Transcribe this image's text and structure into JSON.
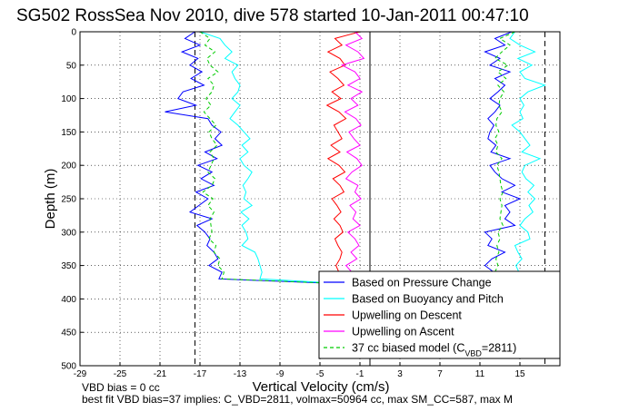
{
  "chart_data": {
    "type": "line",
    "title": "SG502 RossSea Nov 2010, dive 578 started 10-Jan-2011 00:47:10",
    "xlabel": "Vertical Velocity (cm/s)",
    "ylabel": "Depth (m)",
    "xlim": [
      -29,
      19
    ],
    "ylim": [
      500,
      0
    ],
    "y_reversed": true,
    "grid": true,
    "x_ticks": [
      -29,
      -25,
      -21,
      -17,
      -13,
      -9,
      -5,
      -1,
      3,
      7,
      11,
      15
    ],
    "x_tick_labels": [
      "-29",
      "-25",
      "-21",
      "-17",
      "-13",
      "-9",
      "-5",
      "-1",
      "3",
      "7",
      "11",
      "15"
    ],
    "y_ticks": [
      0,
      50,
      100,
      150,
      200,
      250,
      300,
      350,
      400,
      450,
      500
    ],
    "y_tick_labels": [
      "0",
      "50",
      "100",
      "150",
      "200",
      "250",
      "300",
      "350",
      "400",
      "450",
      "500"
    ],
    "reference_lines": [
      {
        "x": -17.5,
        "style": "dashed"
      },
      {
        "x": 0,
        "style": "solid"
      },
      {
        "x": 17.5,
        "style": "dashed"
      }
    ],
    "legend_position": "bottom-right",
    "series": [
      {
        "name": "Based on Pressure Change",
        "color": "#0000ff",
        "descent": {
          "depth": [
            0,
            10,
            20,
            30,
            40,
            50,
            60,
            70,
            80,
            90,
            100,
            110,
            120,
            130,
            140,
            150,
            160,
            170,
            180,
            190,
            200,
            210,
            220,
            230,
            240,
            250,
            260,
            270,
            280,
            290,
            300,
            310,
            320,
            330,
            340,
            350,
            360,
            370,
            378
          ],
          "vel": [
            -17.5,
            -18.5,
            -17.0,
            -18.8,
            -17.2,
            -18.0,
            -16.8,
            -17.9,
            -16.6,
            -18.7,
            -19.2,
            -17.4,
            -20.5,
            -16.2,
            -15.8,
            -14.9,
            -15.5,
            -14.8,
            -16.5,
            -15.3,
            -17.2,
            -15.8,
            -16.9,
            -15.6,
            -17.4,
            -16.2,
            -17.1,
            -18.0,
            -15.8,
            -17.3,
            -16.5,
            -16.0,
            -16.3,
            -15.6,
            -15.2,
            -16.1,
            -14.8,
            -15.1,
            -1.5
          ]
        },
        "ascent": {
          "depth": [
            0,
            10,
            20,
            30,
            40,
            50,
            60,
            70,
            80,
            90,
            100,
            110,
            120,
            130,
            140,
            150,
            160,
            170,
            180,
            190,
            200,
            210,
            220,
            230,
            240,
            250,
            260,
            270,
            280,
            290,
            300,
            310,
            320,
            330,
            340,
            350,
            360
          ],
          "vel": [
            14.2,
            12.5,
            13.5,
            11.5,
            13.0,
            12.0,
            14.0,
            12.5,
            13.5,
            12.8,
            12.0,
            13.0,
            12.5,
            11.8,
            12.4,
            12.0,
            11.8,
            12.6,
            12.1,
            14.0,
            12.0,
            12.5,
            13.2,
            14.5,
            13.2,
            15.0,
            13.5,
            14.0,
            13.5,
            14.5,
            11.5,
            12.2,
            11.8,
            13.5,
            12.2,
            11.5,
            12.4
          ]
        }
      },
      {
        "name": "Based on Buoyancy and Pitch",
        "color": "#00ffff",
        "descent": {
          "depth": [
            0,
            10,
            20,
            30,
            40,
            50,
            60,
            70,
            80,
            90,
            100,
            110,
            120,
            130,
            140,
            150,
            160,
            170,
            180,
            190,
            200,
            210,
            220,
            230,
            240,
            250,
            260,
            270,
            280,
            290,
            300,
            310,
            320,
            330,
            340,
            350,
            360,
            370,
            378
          ],
          "vel": [
            -17.0,
            -15.0,
            -14.5,
            -13.8,
            -14.5,
            -13.2,
            -13.8,
            -13.5,
            -13.0,
            -13.2,
            -13.8,
            -13.0,
            -13.5,
            -14.0,
            -13.2,
            -12.6,
            -12.0,
            -12.8,
            -12.2,
            -13.0,
            -12.6,
            -11.8,
            -12.2,
            -12.7,
            -12.4,
            -12.6,
            -11.8,
            -12.9,
            -12.1,
            -12.8,
            -12.4,
            -12.2,
            -12.8,
            -11.5,
            -11.2,
            -11.0,
            -10.8,
            -11.0,
            -1.5
          ]
        },
        "ascent": {
          "depth": [
            0,
            10,
            20,
            30,
            40,
            50,
            60,
            70,
            80,
            90,
            100,
            110,
            120,
            130,
            140,
            150,
            160,
            170,
            180,
            190,
            200,
            210,
            220,
            230,
            240,
            250,
            260,
            270,
            280,
            290,
            300,
            310,
            320,
            330,
            340,
            350,
            360
          ],
          "vel": [
            14.5,
            14.0,
            15.0,
            16.5,
            14.8,
            16.2,
            15.0,
            15.5,
            17.5,
            15.8,
            15.0,
            15.4,
            15.0,
            15.3,
            14.2,
            15.0,
            15.5,
            16.0,
            15.2,
            17.0,
            15.5,
            15.2,
            15.6,
            16.4,
            15.8,
            16.5,
            15.9,
            16.3,
            15.5,
            15.0,
            15.8,
            16.0,
            14.5,
            14.8,
            15.2,
            14.6,
            14.9
          ]
        }
      },
      {
        "name": "Upwelling on Descent",
        "color": "#ff0000",
        "descent": {
          "depth": [
            0,
            10,
            20,
            30,
            40,
            50,
            60,
            70,
            80,
            90,
            100,
            110,
            120,
            130,
            140,
            150,
            160,
            170,
            180,
            190,
            200,
            210,
            220,
            230,
            240,
            250,
            260,
            270,
            280,
            290,
            300,
            310,
            320,
            330,
            340,
            350,
            360,
            370,
            378
          ],
          "vel": [
            -1.0,
            -3.5,
            -2.8,
            -4.2,
            -3.0,
            -2.5,
            -4.0,
            -3.2,
            -2.6,
            -3.8,
            -2.9,
            -4.3,
            -3.1,
            -2.4,
            -3.6,
            -3.2,
            -2.8,
            -3.9,
            -3.0,
            -4.2,
            -3.1,
            -2.5,
            -3.7,
            -3.0,
            -2.6,
            -3.8,
            -3.3,
            -2.9,
            -3.6,
            -3.0,
            -2.7,
            -3.5,
            -3.2,
            -2.8,
            -3.0,
            -3.4,
            -3.1,
            -2.9,
            -2.0
          ]
        }
      },
      {
        "name": "Upwelling on Ascent",
        "color": "#ff00ff",
        "ascent": {
          "depth": [
            0,
            10,
            20,
            30,
            40,
            50,
            60,
            70,
            80,
            90,
            100,
            110,
            120,
            130,
            140,
            150,
            160,
            170,
            180,
            190,
            200,
            210,
            220,
            230,
            240,
            250,
            260,
            270,
            280,
            290,
            300,
            310,
            320,
            330,
            340,
            350,
            360
          ],
          "vel": [
            -1.5,
            -0.8,
            -2.4,
            -1.2,
            -0.6,
            -2.8,
            -1.5,
            -1.0,
            -2.2,
            -0.8,
            -1.9,
            -1.2,
            -2.5,
            -1.4,
            -0.9,
            -2.1,
            -1.6,
            -1.0,
            -2.3,
            -1.3,
            -0.8,
            -1.8,
            -2.4,
            -1.2,
            -1.5,
            -0.9,
            -2.0,
            -1.4,
            -1.7,
            -1.0,
            -2.2,
            -1.5,
            -1.1,
            -1.9,
            -1.3,
            -2.4,
            -1.8
          ]
        }
      },
      {
        "name": "37 cc biased model (C_VBD=2811)",
        "color": "#00cc00",
        "dashed": true,
        "descent": {
          "depth": [
            0,
            10,
            20,
            30,
            40,
            50,
            60,
            70,
            80,
            90,
            100,
            110,
            120,
            130,
            140,
            150,
            160,
            170,
            180,
            190,
            200,
            210,
            220,
            230,
            240,
            250,
            260,
            270,
            280,
            290,
            300,
            310,
            320,
            330,
            340,
            350,
            360,
            370,
            378
          ],
          "vel": [
            -17.0,
            -16.0,
            -16.5,
            -15.5,
            -16.3,
            -16.0,
            -15.2,
            -16.2,
            -15.6,
            -15.8,
            -16.4,
            -15.9,
            -16.6,
            -16.0,
            -15.4,
            -16.1,
            -15.8,
            -15.3,
            -16.0,
            -15.6,
            -15.9,
            -16.2,
            -15.5,
            -15.8,
            -16.7,
            -15.7,
            -16.2,
            -15.6,
            -16.0,
            -15.9,
            -15.8,
            -16.1,
            -15.4,
            -15.6,
            -15.0,
            -15.2,
            -14.6,
            -14.8,
            -1.5
          ]
        },
        "ascent": {
          "depth": [
            0,
            10,
            20,
            30,
            40,
            50,
            60,
            70,
            80,
            90,
            100,
            110,
            120,
            130,
            140,
            150,
            160,
            170,
            180,
            190,
            200,
            210,
            220,
            230,
            240,
            250,
            260,
            270,
            280,
            290,
            300,
            310,
            320,
            330,
            340,
            350,
            360
          ],
          "vel": [
            14.5,
            13.0,
            14.0,
            13.2,
            12.5,
            13.8,
            12.8,
            13.6,
            12.8,
            13.4,
            13.0,
            12.9,
            13.2,
            12.7,
            12.6,
            12.9,
            12.5,
            12.8,
            12.6,
            13.2,
            12.7,
            12.9,
            13.0,
            13.1,
            13.3,
            13.0,
            13.2,
            13.1,
            13.0,
            13.3,
            12.8,
            13.0,
            12.7,
            12.9,
            12.6,
            12.8,
            12.5
          ]
        }
      }
    ],
    "legend": {
      "entries": [
        {
          "label": "Based on Pressure Change",
          "color": "#0000ff",
          "dashed": false
        },
        {
          "label": "Based on Buoyancy and Pitch",
          "color": "#00ffff",
          "dashed": false
        },
        {
          "label": "Upwelling on Descent",
          "color": "#ff0000",
          "dashed": false
        },
        {
          "label": "Upwelling on Ascent",
          "color": "#ff00ff",
          "dashed": false
        },
        {
          "label_prefix": "37 cc biased model (C",
          "label_sub": "VBD",
          "label_suffix": "=2811)",
          "color": "#00cc00",
          "dashed": true
        }
      ]
    },
    "notes": {
      "line1": "VBD bias = 0 cc",
      "line2": "best fit VBD bias=37 implies: C_VBD=2811, volmax=50964 cc, max SM_CC=587, max M"
    }
  }
}
